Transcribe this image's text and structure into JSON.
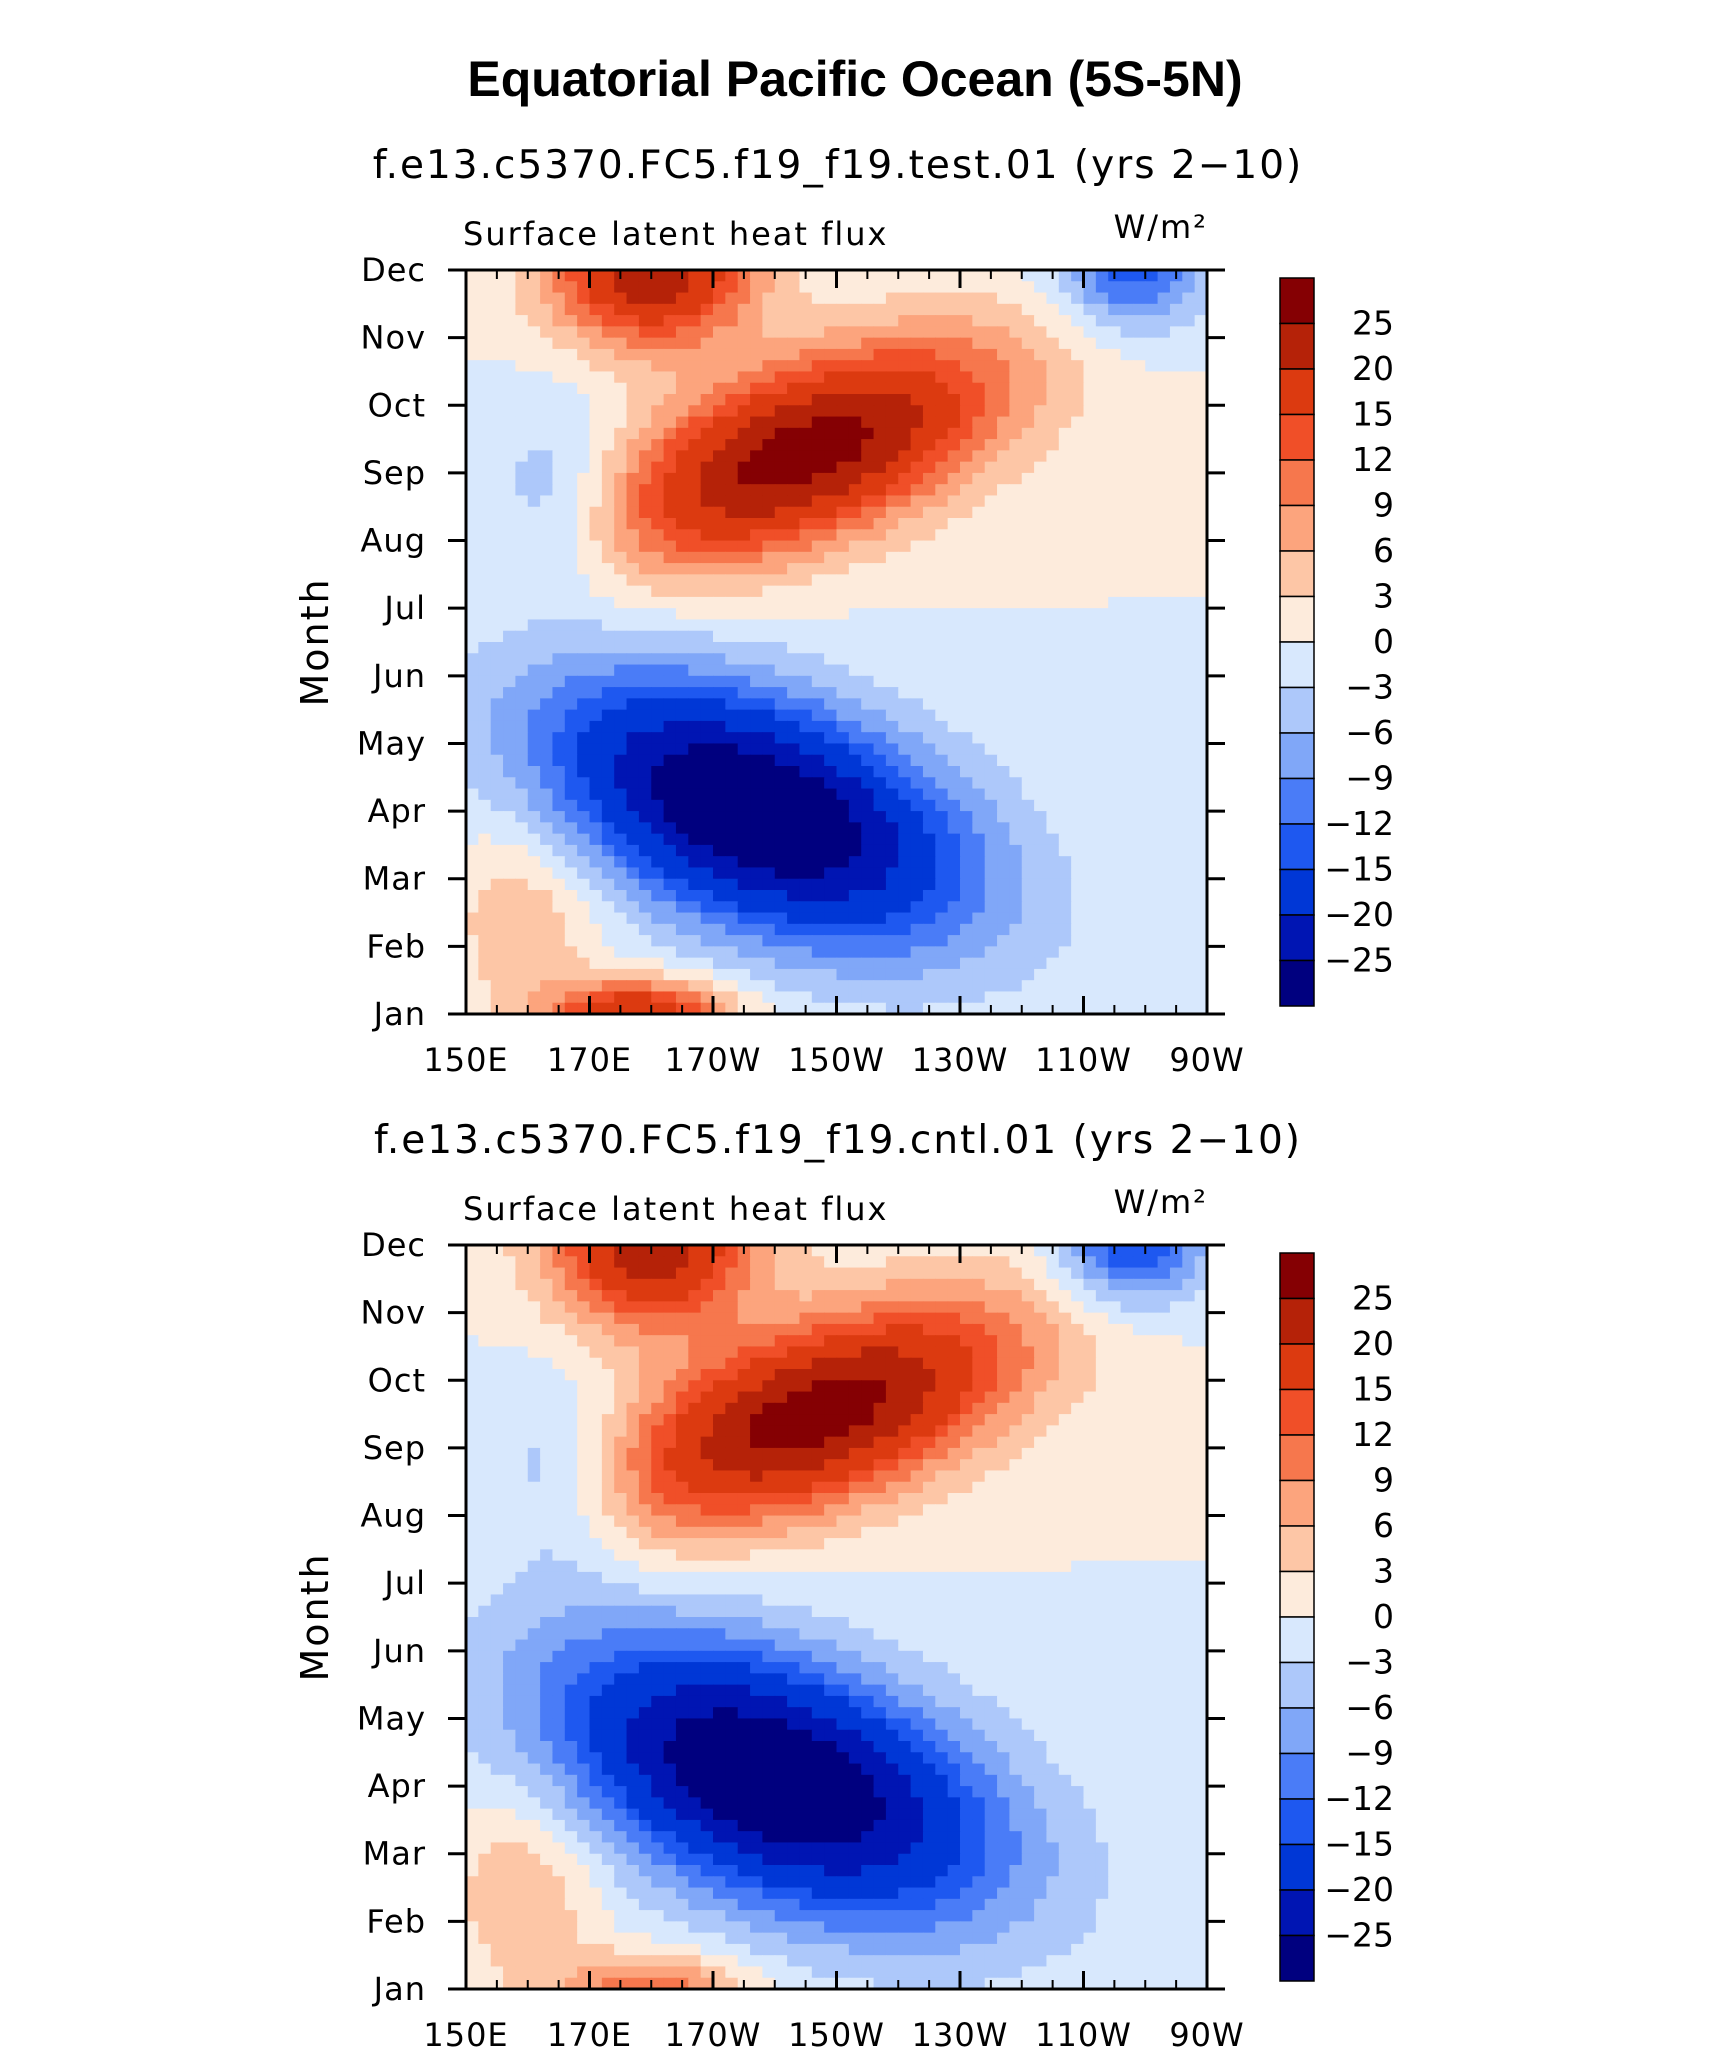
{
  "figure": {
    "title": "Equatorial Pacific Ocean (5S-5N)"
  },
  "chart_data": [
    {
      "type": "heatmap",
      "title": "f.e13.c5370.FC5.f19_f19.test.01 (yrs 2−10)",
      "variable": "Surface latent heat flux",
      "units": "W/m²",
      "xlabel": "",
      "ylabel": "Month",
      "x_ticks": [
        "150E",
        "170E",
        "170W",
        "150W",
        "130W",
        "110W",
        "90W"
      ],
      "x_range_lon": [
        150,
        270
      ],
      "y_ticks": [
        "Jan",
        "Feb",
        "Mar",
        "Apr",
        "May",
        "Jun",
        "Jul",
        "Aug",
        "Sep",
        "Oct",
        "Nov",
        "Dec"
      ],
      "colorbar_labels": [
        "25",
        "20",
        "15",
        "12",
        "9",
        "6",
        "3",
        "0",
        "−3",
        "−6",
        "−9",
        "−12",
        "−15",
        "−20",
        "−25"
      ],
      "contour_levels": [
        -25,
        -20,
        -15,
        -12,
        -9,
        -6,
        -3,
        0,
        3,
        6,
        9,
        12,
        15,
        20,
        25
      ],
      "features": {
        "cold_tongue": {
          "peak": -32,
          "lon": 197,
          "month_index": 3.0,
          "lon_spread": 30,
          "month_spread": 1.9,
          "tilt_lon_per_month": -8
        },
        "warm_band": {
          "peak": 28,
          "lon": 205,
          "month_index": 8.3,
          "lon_spread": 26,
          "month_spread": 1.6,
          "tilt_lon_per_month": 11
        },
        "late_year_warm": {
          "peak": 24,
          "lon": 180,
          "month_index": 11.0,
          "lon_spread": 16,
          "month_spread": 1.1
        },
        "jan_warm": {
          "peak": 20,
          "lon": 178,
          "month_index": 0.0,
          "lon_spread": 14,
          "month_spread": 0.5
        },
        "east_dec_cool": {
          "peak": -14,
          "lon": 258,
          "month_index": 11.0,
          "lon_spread": 12,
          "month_spread": 0.9
        }
      }
    },
    {
      "type": "heatmap",
      "title": "f.e13.c5370.FC5.f19_f19.cntl.01 (yrs 2−10)",
      "variable": "Surface latent heat flux",
      "units": "W/m²",
      "xlabel": "",
      "ylabel": "Month",
      "x_ticks": [
        "150E",
        "170E",
        "170W",
        "150W",
        "130W",
        "110W",
        "90W"
      ],
      "x_range_lon": [
        150,
        270
      ],
      "y_ticks": [
        "Jan",
        "Feb",
        "Mar",
        "Apr",
        "May",
        "Jun",
        "Jul",
        "Aug",
        "Sep",
        "Oct",
        "Nov",
        "Dec"
      ],
      "colorbar_labels": [
        "25",
        "20",
        "15",
        "12",
        "9",
        "6",
        "3",
        "0",
        "−3",
        "−6",
        "−9",
        "−12",
        "−15",
        "−20",
        "−25"
      ],
      "contour_levels": [
        -25,
        -20,
        -15,
        -12,
        -9,
        -6,
        -3,
        0,
        3,
        6,
        9,
        12,
        15,
        20,
        25
      ],
      "features": {
        "cold_tongue": {
          "peak": -32,
          "lon": 200,
          "month_index": 3.1,
          "lon_spread": 31,
          "month_spread": 2.0,
          "tilt_lon_per_month": -8
        },
        "warm_band": {
          "peak": 28,
          "lon": 207,
          "month_index": 8.5,
          "lon_spread": 27,
          "month_spread": 1.6,
          "tilt_lon_per_month": 11
        },
        "late_year_warm": {
          "peak": 24,
          "lon": 180,
          "month_index": 11.0,
          "lon_spread": 16,
          "month_spread": 1.2
        },
        "jan_warm": {
          "peak": 12,
          "lon": 180,
          "month_index": 0.0,
          "lon_spread": 14,
          "month_spread": 0.5
        },
        "east_dec_cool": {
          "peak": -16,
          "lon": 258,
          "month_index": 11.0,
          "lon_spread": 12,
          "month_spread": 0.9
        }
      }
    }
  ],
  "colors": {
    "palette": [
      "#00007f",
      "#0015b3",
      "#0037d6",
      "#1e58f0",
      "#4a7cf7",
      "#80a7f8",
      "#adc8fa",
      "#d8e8fd",
      "#fdebdc",
      "#fdc6a6",
      "#fca47d",
      "#f6774d",
      "#f04f28",
      "#dc3a10",
      "#b52208",
      "#850003"
    ]
  }
}
